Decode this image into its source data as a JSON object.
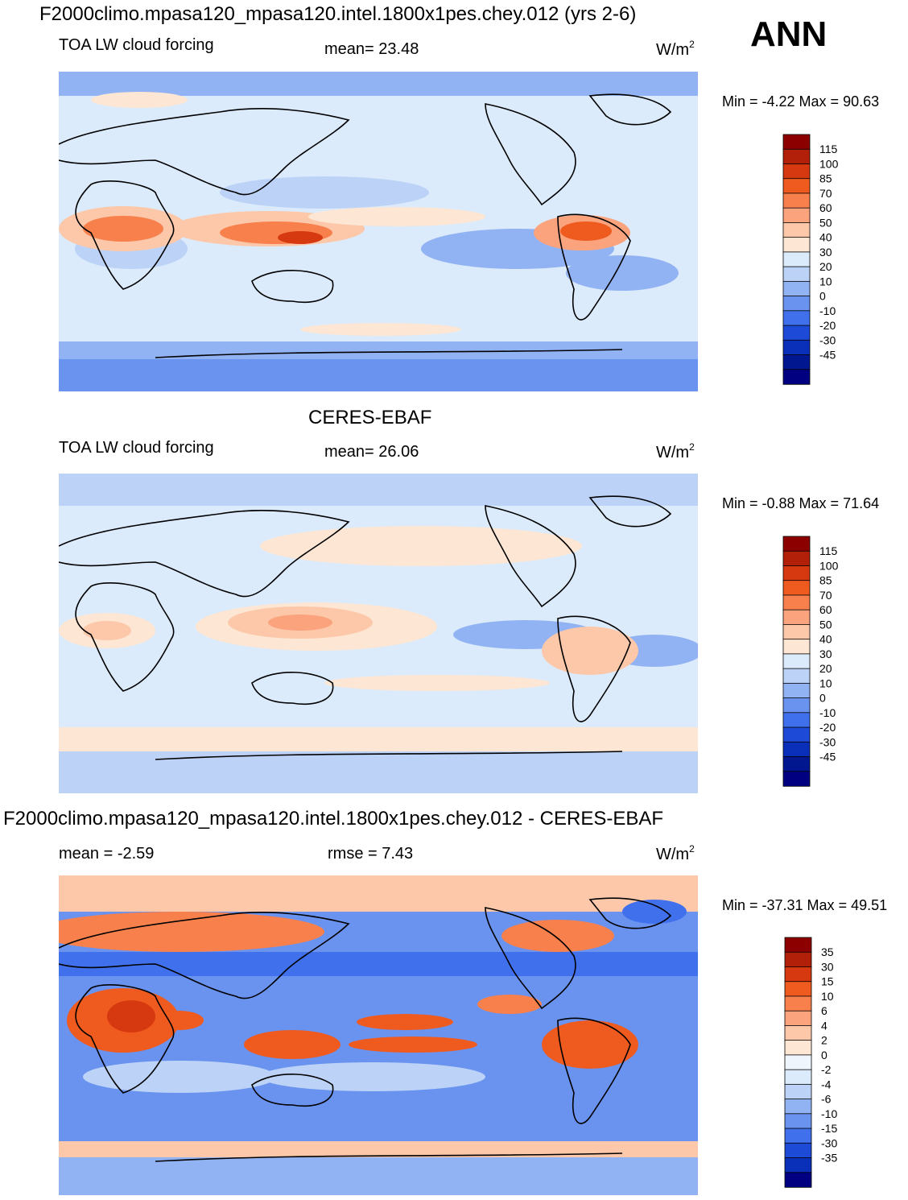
{
  "figure": {
    "title": "F2000climo.mpasa120_mpasa120.intel.1800x1pes.chey.012 (yrs 2-6)",
    "season": "ANN"
  },
  "panels": [
    {
      "id": "model",
      "variable_label": "TOA LW cloud forcing",
      "stat_text": "mean=  23.48",
      "units": "W/m",
      "units_sup": "2",
      "minmax_text": "Min =  -4.22 Max =  90.63"
    },
    {
      "id": "obs",
      "heading": "CERES-EBAF",
      "variable_label": "TOA LW cloud forcing",
      "stat_text": "mean=  26.06",
      "units": "W/m",
      "units_sup": "2",
      "minmax_text": "Min =  -0.88 Max =  71.64"
    },
    {
      "id": "diff",
      "heading": "F2000climo.mpasa120_mpasa120.intel.1800x1pes.chey.012 - CERES-EBAF",
      "mean_text": "mean =  -2.59",
      "rmse_text": "rmse =    7.43",
      "units": "W/m",
      "units_sup": "2",
      "minmax_text": "Min = -37.31 Max =  49.51"
    }
  ],
  "chart_data": [
    {
      "type": "heatmap",
      "panel": "model",
      "subtitle": "TOA LW cloud forcing",
      "mean": 23.48,
      "min": -4.22,
      "max": 90.63,
      "units": "W/m2",
      "colorbar": {
        "labels": [
          "115",
          "100",
          "85",
          "70",
          "60",
          "50",
          "40",
          "30",
          "20",
          "10",
          "0",
          "-10",
          "-20",
          "-30",
          "-45"
        ],
        "colors": [
          "#8c0000",
          "#b3200a",
          "#d6380f",
          "#ef5a1f",
          "#f7804d",
          "#fba37d",
          "#fcc8a9",
          "#fde6d3",
          "#dbebfb",
          "#bcd3f7",
          "#92b3f3",
          "#6a93f0",
          "#4070ec",
          "#1e4ad8",
          "#0a2fb8",
          "#00178f",
          "#000080"
        ]
      },
      "map_extent": {
        "lon": [
          0,
          360
        ],
        "lat": [
          -90,
          90
        ]
      }
    },
    {
      "type": "heatmap",
      "panel": "obs",
      "subtitle": "TOA LW cloud forcing",
      "mean": 26.06,
      "min": -0.88,
      "max": 71.64,
      "units": "W/m2",
      "colorbar": {
        "labels": [
          "115",
          "100",
          "85",
          "70",
          "60",
          "50",
          "40",
          "30",
          "20",
          "10",
          "0",
          "-10",
          "-20",
          "-30",
          "-45"
        ],
        "colors": [
          "#8c0000",
          "#b3200a",
          "#d6380f",
          "#ef5a1f",
          "#f7804d",
          "#fba37d",
          "#fcc8a9",
          "#fde6d3",
          "#dbebfb",
          "#bcd3f7",
          "#92b3f3",
          "#6a93f0",
          "#4070ec",
          "#1e4ad8",
          "#0a2fb8",
          "#00178f",
          "#000080"
        ]
      },
      "map_extent": {
        "lon": [
          0,
          360
        ],
        "lat": [
          -90,
          90
        ]
      }
    },
    {
      "type": "heatmap",
      "panel": "diff",
      "mean": -2.59,
      "rmse": 7.43,
      "min": -37.31,
      "max": 49.51,
      "units": "W/m2",
      "colorbar": {
        "labels": [
          "35",
          "30",
          "15",
          "10",
          "6",
          "4",
          "2",
          "0",
          "-2",
          "-4",
          "-6",
          "-10",
          "-15",
          "-30",
          "-35"
        ],
        "colors": [
          "#8c0000",
          "#b3200a",
          "#d6380f",
          "#ef5a1f",
          "#f7804d",
          "#fba37d",
          "#fcc8a9",
          "#fde6d3",
          "#eef5fd",
          "#dbebfb",
          "#bcd3f7",
          "#92b3f3",
          "#6a93f0",
          "#4070ec",
          "#1e4ad8",
          "#0a2fb8",
          "#000080"
        ]
      },
      "map_extent": {
        "lon": [
          0,
          360
        ],
        "lat": [
          -90,
          90
        ]
      }
    }
  ]
}
